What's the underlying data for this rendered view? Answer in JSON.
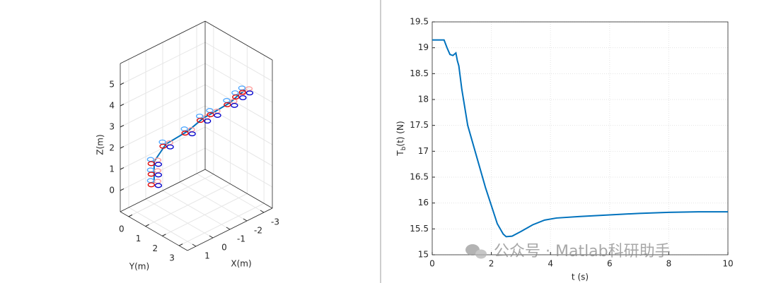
{
  "chart_data": [
    {
      "type": "line3d",
      "xlabel": "X(m)",
      "ylabel": "Y(m)",
      "zlabel": "Z(m)",
      "xlim": [
        -3.5,
        1.5
      ],
      "ylim": [
        -0.5,
        3.5
      ],
      "zlim": [
        -1,
        6
      ],
      "xticks": [
        -3,
        -2,
        -1,
        0,
        1
      ],
      "yticks": [
        0,
        1,
        2,
        3
      ],
      "zticks": [
        0,
        1,
        2,
        3,
        4,
        5
      ],
      "grid": true,
      "series": [
        {
          "color": "#0072bd",
          "x": [
            0,
            0,
            0,
            -0.4,
            -1,
            -1.6,
            -2,
            -2.5,
            -2.9,
            -3.2
          ],
          "y": [
            0,
            0,
            0,
            0.3,
            1,
            1.3,
            1.5,
            2,
            2.1,
            2.2
          ],
          "z": [
            0,
            0.5,
            1,
            1.8,
            2.5,
            3,
            3.2,
            3.7,
            3.95,
            4.1
          ]
        }
      ],
      "drone_colors": [
        "#4da6ff",
        "#ff9a9a",
        "#e00000",
        "#0000cc"
      ]
    },
    {
      "type": "line",
      "xlabel": "t (s)",
      "ylabel": [
        "T",
        "b",
        "(t) (N)"
      ],
      "xlim": [
        0,
        10
      ],
      "ylim": [
        15,
        19.5
      ],
      "xticks": [
        0,
        2,
        4,
        6,
        8,
        10
      ],
      "yticks": [
        15,
        15.5,
        16,
        16.5,
        17,
        17.5,
        18,
        18.5,
        19,
        19.5
      ],
      "grid": true,
      "x": [
        0,
        0.4,
        0.5,
        0.6,
        0.7,
        0.8,
        0.85,
        0.9,
        1.0,
        1.2,
        1.5,
        1.8,
        2.0,
        2.2,
        2.4,
        2.5,
        2.7,
        3.0,
        3.4,
        3.8,
        4.2,
        5,
        6,
        7,
        8,
        9,
        10
      ],
      "series": [
        {
          "color": "#0072bd",
          "values": [
            19.15,
            19.15,
            19.0,
            18.87,
            18.85,
            18.9,
            18.75,
            18.65,
            18.2,
            17.5,
            16.9,
            16.3,
            15.95,
            15.6,
            15.4,
            15.35,
            15.36,
            15.45,
            15.58,
            15.67,
            15.71,
            15.74,
            15.77,
            15.8,
            15.82,
            15.83,
            15.83
          ]
        }
      ]
    }
  ],
  "watermark": "公众号 · Matlab科研助手"
}
